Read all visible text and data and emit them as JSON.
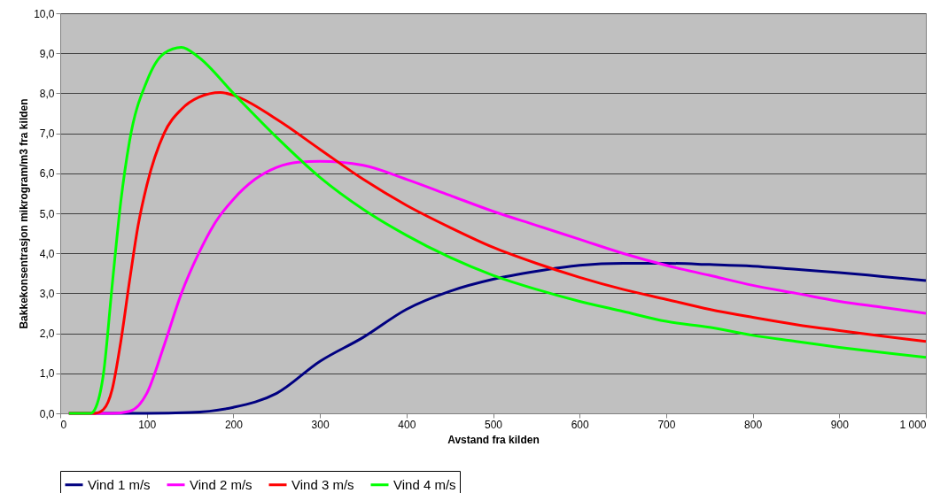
{
  "chart_data": {
    "type": "line",
    "xlabel": "Avstand fra kilden",
    "ylabel": "Bakkekonsentrasjon mikrogram/m3 fra kilden",
    "xlim": [
      0,
      1000
    ],
    "ylim": [
      0,
      10
    ],
    "xticks": [
      0,
      100,
      200,
      300,
      400,
      500,
      600,
      700,
      800,
      900,
      {
        "value": 1000,
        "label": "1 000"
      }
    ],
    "yticks": [
      {
        "value": 0,
        "label": "0,0"
      },
      {
        "value": 1,
        "label": "1,0"
      },
      {
        "value": 2,
        "label": "2,0"
      },
      {
        "value": 3,
        "label": "3,0"
      },
      {
        "value": 4,
        "label": "4,0"
      },
      {
        "value": 5,
        "label": "5,0"
      },
      {
        "value": 6,
        "label": "6,0"
      },
      {
        "value": 7,
        "label": "7,0"
      },
      {
        "value": 8,
        "label": "8,0"
      },
      {
        "value": 9,
        "label": "9,0"
      },
      {
        "value": 10,
        "label": "10,0"
      }
    ],
    "grid": "y",
    "legend": "bottom",
    "marker": "none",
    "line_style": "solid",
    "series": [
      {
        "name": "Vind 1 m/s",
        "color": "#000080",
        "x": [
          10,
          100,
          150,
          200,
          250,
          300,
          350,
          400,
          450,
          500,
          550,
          600,
          650,
          700,
          750,
          800,
          850,
          900,
          950,
          1000
        ],
        "values": [
          0,
          0,
          0.02,
          0.15,
          0.5,
          1.3,
          1.9,
          2.6,
          3.05,
          3.35,
          3.55,
          3.7,
          3.75,
          3.75,
          3.72,
          3.68,
          3.6,
          3.52,
          3.42,
          3.32
        ]
      },
      {
        "name": "Vind 2 m/s",
        "color": "#ff00ff",
        "x": [
          10,
          60,
          80,
          100,
          120,
          140,
          160,
          180,
          200,
          225,
          250,
          275,
          300,
          350,
          400,
          450,
          500,
          550,
          600,
          650,
          700,
          750,
          800,
          850,
          900,
          950,
          1000
        ],
        "values": [
          0,
          0,
          0.05,
          0.5,
          1.7,
          3.0,
          4.0,
          4.8,
          5.35,
          5.85,
          6.15,
          6.28,
          6.3,
          6.2,
          5.85,
          5.45,
          5.05,
          4.7,
          4.35,
          4.0,
          3.7,
          3.45,
          3.2,
          3.0,
          2.8,
          2.65,
          2.5
        ]
      },
      {
        "name": "Vind 3 m/s",
        "color": "#ff0000",
        "x": [
          10,
          40,
          50,
          60,
          70,
          80,
          90,
          100,
          120,
          140,
          160,
          185,
          200,
          250,
          300,
          350,
          400,
          450,
          500,
          550,
          600,
          650,
          700,
          750,
          800,
          850,
          900,
          950,
          1000
        ],
        "values": [
          0,
          0,
          0.1,
          0.6,
          1.8,
          3.3,
          4.7,
          5.7,
          7.0,
          7.6,
          7.9,
          8.02,
          7.95,
          7.35,
          6.6,
          5.85,
          5.2,
          4.65,
          4.15,
          3.75,
          3.4,
          3.1,
          2.85,
          2.6,
          2.4,
          2.22,
          2.07,
          1.93,
          1.8
        ]
      },
      {
        "name": "Vind 4 m/s",
        "color": "#00ff00",
        "x": [
          10,
          35,
          40,
          50,
          60,
          70,
          80,
          100,
          120,
          140,
          160,
          200,
          250,
          300,
          350,
          400,
          450,
          500,
          550,
          600,
          650,
          700,
          750,
          800,
          850,
          900,
          950,
          1000
        ],
        "values": [
          0,
          0,
          0.1,
          1.0,
          3.2,
          5.3,
          6.8,
          8.3,
          9.0,
          9.15,
          8.9,
          8.0,
          6.9,
          5.9,
          5.1,
          4.45,
          3.9,
          3.45,
          3.1,
          2.8,
          2.55,
          2.3,
          2.15,
          1.95,
          1.8,
          1.65,
          1.52,
          1.4
        ]
      }
    ]
  }
}
